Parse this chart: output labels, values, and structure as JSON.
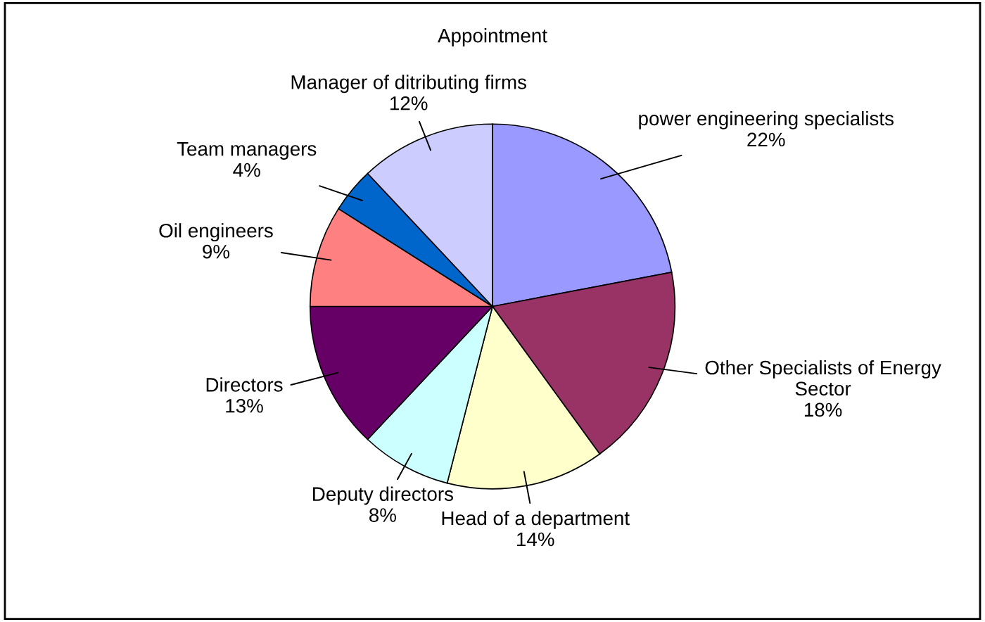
{
  "chart_data": {
    "type": "pie",
    "title": "Appointment",
    "categories": [
      "power engineering specialists",
      "Other Specialists of Energy Sector",
      "Head of a department",
      "Deputy directors",
      "Directors",
      "Oil engineers",
      "Team managers",
      "Manager of ditributing firms"
    ],
    "values": [
      22,
      18,
      14,
      8,
      13,
      9,
      4,
      12
    ],
    "value_labels": [
      "22%",
      "18%",
      "14%",
      "8%",
      "13%",
      "9%",
      "4%",
      "12%"
    ],
    "colors": [
      "#9999ff",
      "#993366",
      "#ffffcc",
      "#ccffff",
      "#660066",
      "#ff8080",
      "#0066cc",
      "#ccccff"
    ],
    "legend": false
  }
}
